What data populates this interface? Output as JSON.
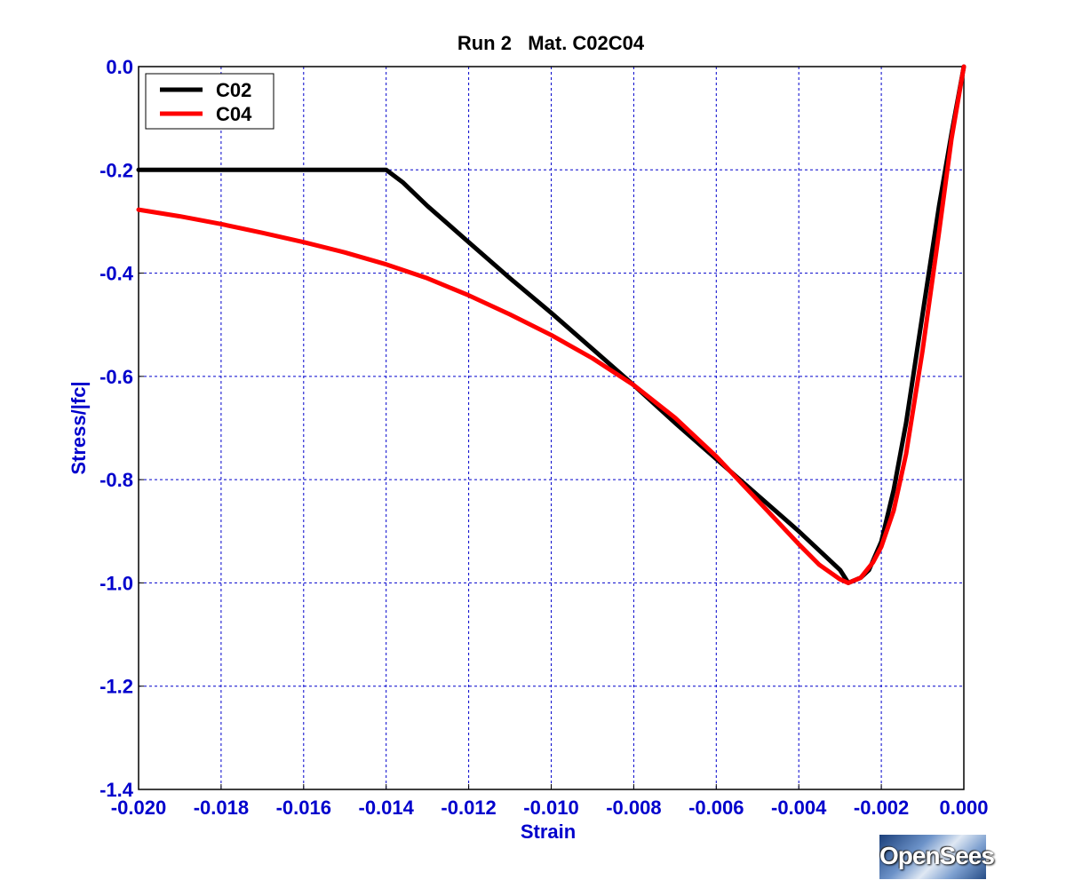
{
  "chart_data": {
    "type": "line",
    "title": "Run 2   Mat. C02C04",
    "xlabel": "Strain",
    "ylabel": "Stress/|fc|",
    "xlim": [
      -0.02,
      0.0
    ],
    "ylim": [
      -1.4,
      0.0
    ],
    "xticks": [
      "-0.020",
      "-0.018",
      "-0.016",
      "-0.014",
      "-0.012",
      "-0.010",
      "-0.008",
      "-0.006",
      "-0.004",
      "-0.002",
      "0.000"
    ],
    "yticks": [
      "0.0",
      "-0.2",
      "-0.4",
      "-0.6",
      "-0.8",
      "-1.0",
      "-1.2",
      "-1.4"
    ],
    "grid": true,
    "legend_position": "top-left",
    "series": [
      {
        "name": "C02",
        "color": "#000000",
        "x": [
          -0.02,
          -0.018,
          -0.016,
          -0.014,
          -0.0136,
          -0.013,
          -0.012,
          -0.011,
          -0.01,
          -0.009,
          -0.008,
          -0.007,
          -0.006,
          -0.005,
          -0.004,
          -0.003,
          -0.0028,
          -0.0025,
          -0.0023,
          -0.002,
          -0.0017,
          -0.0014,
          -0.001,
          -0.0006,
          -0.0003,
          0.0
        ],
        "y": [
          -0.2,
          -0.2,
          -0.2,
          -0.2,
          -0.224,
          -0.27,
          -0.34,
          -0.41,
          -0.477,
          -0.547,
          -0.617,
          -0.69,
          -0.76,
          -0.83,
          -0.9,
          -0.975,
          -1.0,
          -0.99,
          -0.975,
          -0.92,
          -0.82,
          -0.69,
          -0.48,
          -0.27,
          -0.13,
          0.0
        ]
      },
      {
        "name": "C04",
        "color": "#ff0000",
        "x": [
          -0.02,
          -0.019,
          -0.018,
          -0.017,
          -0.016,
          -0.015,
          -0.014,
          -0.013,
          -0.012,
          -0.011,
          -0.01,
          -0.009,
          -0.008,
          -0.007,
          -0.006,
          -0.005,
          -0.004,
          -0.0035,
          -0.003,
          -0.0028,
          -0.0025,
          -0.0022,
          -0.002,
          -0.0017,
          -0.0014,
          -0.001,
          -0.0006,
          -0.0003,
          0.0
        ],
        "y": [
          -0.277,
          -0.29,
          -0.305,
          -0.322,
          -0.34,
          -0.36,
          -0.383,
          -0.41,
          -0.443,
          -0.48,
          -0.52,
          -0.565,
          -0.617,
          -0.68,
          -0.755,
          -0.84,
          -0.925,
          -0.965,
          -0.993,
          -1.0,
          -0.99,
          -0.96,
          -0.93,
          -0.86,
          -0.75,
          -0.55,
          -0.32,
          -0.14,
          0.0
        ]
      }
    ]
  }
}
